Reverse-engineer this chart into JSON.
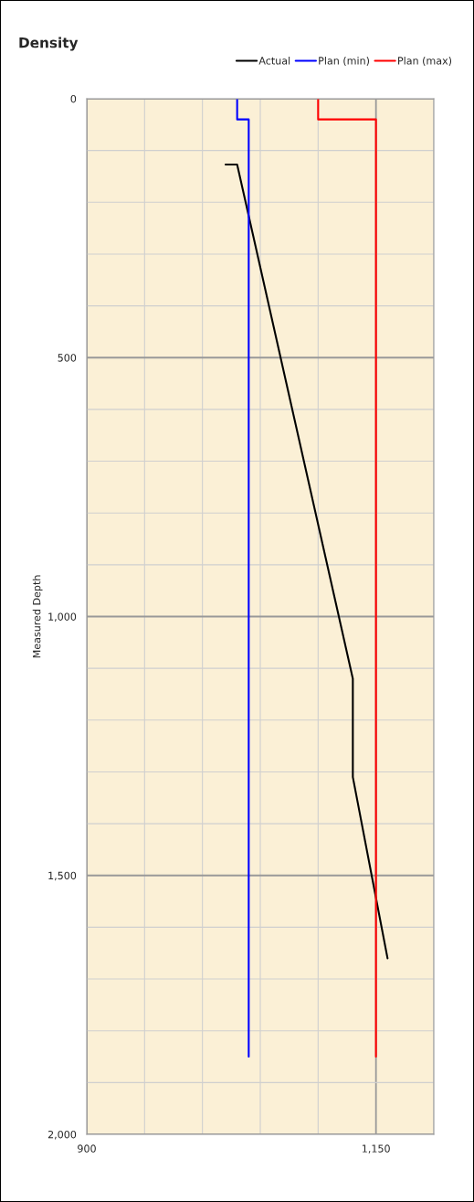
{
  "chart_data": {
    "type": "line",
    "title": "Density",
    "ylabel": "Measured Depth",
    "xlim": [
      900,
      1200
    ],
    "ylim": [
      2000,
      0
    ],
    "xticks": [
      {
        "value": 900,
        "label": "900"
      },
      {
        "value": 950,
        "label": null
      },
      {
        "value": 1000,
        "label": null
      },
      {
        "value": 1050,
        "label": null
      },
      {
        "value": 1100,
        "label": null
      },
      {
        "value": 1150,
        "label": "1,150"
      },
      {
        "value": 1200,
        "label": null
      }
    ],
    "yticks": [
      {
        "value": 0,
        "label": "0"
      },
      {
        "value": 100,
        "label": null
      },
      {
        "value": 200,
        "label": null
      },
      {
        "value": 300,
        "label": null
      },
      {
        "value": 400,
        "label": null
      },
      {
        "value": 500,
        "label": "500"
      },
      {
        "value": 600,
        "label": null
      },
      {
        "value": 700,
        "label": null
      },
      {
        "value": 800,
        "label": null
      },
      {
        "value": 900,
        "label": null
      },
      {
        "value": 1000,
        "label": "1,000"
      },
      {
        "value": 1100,
        "label": null
      },
      {
        "value": 1200,
        "label": null
      },
      {
        "value": 1300,
        "label": null
      },
      {
        "value": 1400,
        "label": null
      },
      {
        "value": 1500,
        "label": "1,500"
      },
      {
        "value": 1600,
        "label": null
      },
      {
        "value": 1700,
        "label": null
      },
      {
        "value": 1800,
        "label": null
      },
      {
        "value": 1900,
        "label": null
      },
      {
        "value": 2000,
        "label": "2,000"
      }
    ],
    "grid": true,
    "legend": "top right",
    "marker": "none",
    "line_style": "solid",
    "series": [
      {
        "name": "Actual",
        "color": "#000000",
        "x": [
          1020,
          1030,
          1130,
          1130,
          1160
        ],
        "values": [
          127,
          127,
          1120,
          1310,
          1660
        ]
      },
      {
        "name": "Plan (min)",
        "color": "#0000ff",
        "x": [
          1030,
          1030,
          1040,
          1040
        ],
        "values": [
          0,
          40,
          40,
          1850
        ]
      },
      {
        "name": "Plan (max)",
        "color": "#ff0000",
        "x": [
          1100,
          1100,
          1150,
          1150
        ],
        "values": [
          0,
          40,
          40,
          1850
        ]
      }
    ]
  }
}
